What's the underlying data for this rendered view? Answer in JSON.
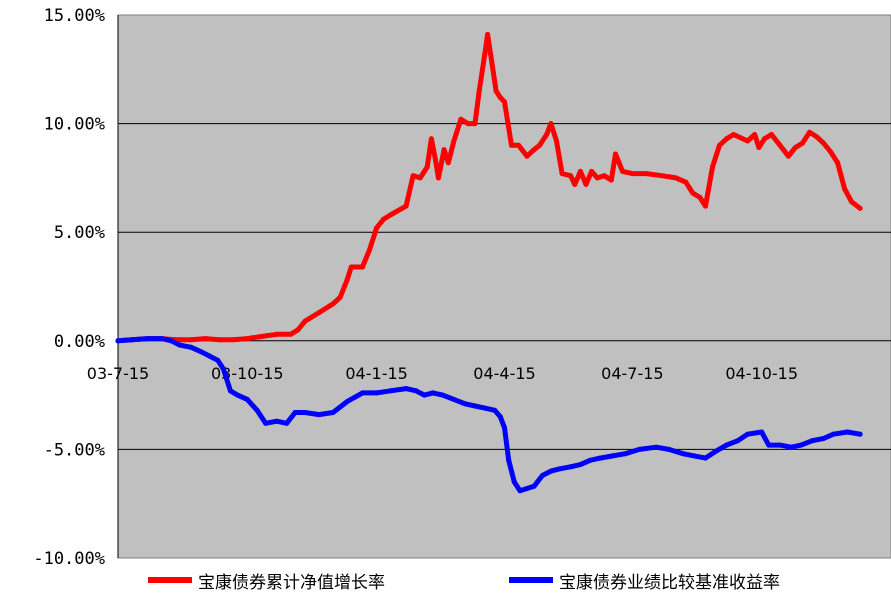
{
  "chart_data": {
    "type": "line",
    "title": "",
    "xlabel": "",
    "ylabel": "",
    "ylim": [
      -10,
      15
    ],
    "y_ticks": [
      {
        "value": 15,
        "label": "15.00%"
      },
      {
        "value": 10,
        "label": "10.00%"
      },
      {
        "value": 5,
        "label": "5.00%"
      },
      {
        "value": 0,
        "label": "0.00%"
      },
      {
        "value": -5,
        "label": "-5.00%"
      },
      {
        "value": -10,
        "label": "-10.00%"
      }
    ],
    "x_ticks": [
      "03-7-15",
      "03-10-15",
      "04-1-15",
      "04-4-15",
      "04-7-15",
      "04-10-15"
    ],
    "x_range": [
      "03-7-15",
      "05-1-15"
    ],
    "grid": true,
    "legend_position": "bottom",
    "plot_background": "#C0C0C0",
    "series": [
      {
        "name": "宝康债券累计净值增长率",
        "color": "#FF0000",
        "points": [
          [
            "03-7-15",
            0.0
          ],
          [
            "03-7-25",
            0.05
          ],
          [
            "03-8-5",
            0.1
          ],
          [
            "03-8-15",
            0.1
          ],
          [
            "03-8-25",
            0.05
          ],
          [
            "03-9-5",
            0.05
          ],
          [
            "03-9-15",
            0.1
          ],
          [
            "03-9-25",
            0.05
          ],
          [
            "03-10-5",
            0.05
          ],
          [
            "03-10-15",
            0.1
          ],
          [
            "03-10-25",
            0.2
          ],
          [
            "03-11-5",
            0.3
          ],
          [
            "03-11-15",
            0.3
          ],
          [
            "03-11-20",
            0.5
          ],
          [
            "03-11-25",
            0.9
          ],
          [
            "03-12-5",
            1.3
          ],
          [
            "03-12-15",
            1.7
          ],
          [
            "03-12-20",
            2.0
          ],
          [
            "03-12-25",
            2.8
          ],
          [
            "03-12-28",
            3.4
          ],
          [
            "04-1-5",
            3.4
          ],
          [
            "04-1-10",
            4.2
          ],
          [
            "04-1-15",
            5.2
          ],
          [
            "04-1-20",
            5.6
          ],
          [
            "04-1-25",
            5.8
          ],
          [
            "04-2-5",
            6.2
          ],
          [
            "04-2-10",
            7.6
          ],
          [
            "04-2-15",
            7.5
          ],
          [
            "04-2-20",
            8.0
          ],
          [
            "04-2-23",
            9.3
          ],
          [
            "04-2-26",
            8.3
          ],
          [
            "04-2-28",
            7.5
          ],
          [
            "04-3-3",
            8.8
          ],
          [
            "04-3-6",
            8.2
          ],
          [
            "04-3-10",
            9.2
          ],
          [
            "04-3-15",
            10.2
          ],
          [
            "04-3-20",
            10.0
          ],
          [
            "04-3-25",
            10.0
          ],
          [
            "04-3-28",
            11.5
          ],
          [
            "04-4-1",
            13.2
          ],
          [
            "04-4-3",
            14.1
          ],
          [
            "04-4-6",
            12.8
          ],
          [
            "04-4-9",
            11.5
          ],
          [
            "04-4-12",
            11.2
          ],
          [
            "04-4-15",
            11.0
          ],
          [
            "04-4-20",
            9.0
          ],
          [
            "04-4-25",
            9.0
          ],
          [
            "04-5-1",
            8.5
          ],
          [
            "04-5-6",
            8.8
          ],
          [
            "04-5-10",
            9.0
          ],
          [
            "04-5-15",
            9.5
          ],
          [
            "04-5-18",
            10.0
          ],
          [
            "04-5-22",
            9.2
          ],
          [
            "04-5-26",
            7.7
          ],
          [
            "04-6-1",
            7.6
          ],
          [
            "04-6-4",
            7.2
          ],
          [
            "04-6-8",
            7.8
          ],
          [
            "04-6-12",
            7.2
          ],
          [
            "04-6-16",
            7.8
          ],
          [
            "04-6-20",
            7.5
          ],
          [
            "04-6-25",
            7.6
          ],
          [
            "04-6-30",
            7.4
          ],
          [
            "04-7-3",
            8.6
          ],
          [
            "04-7-8",
            7.8
          ],
          [
            "04-7-15",
            7.7
          ],
          [
            "04-7-25",
            7.7
          ],
          [
            "04-8-5",
            7.6
          ],
          [
            "04-8-15",
            7.5
          ],
          [
            "04-8-22",
            7.3
          ],
          [
            "04-8-27",
            6.8
          ],
          [
            "04-9-1",
            6.6
          ],
          [
            "04-9-5",
            6.2
          ],
          [
            "04-9-10",
            8.0
          ],
          [
            "04-9-15",
            9.0
          ],
          [
            "04-9-20",
            9.3
          ],
          [
            "04-9-25",
            9.5
          ],
          [
            "04-10-5",
            9.2
          ],
          [
            "04-10-10",
            9.5
          ],
          [
            "04-10-13",
            8.9
          ],
          [
            "04-10-17",
            9.3
          ],
          [
            "04-10-22",
            9.5
          ],
          [
            "04-10-28",
            9.0
          ],
          [
            "04-11-3",
            8.5
          ],
          [
            "04-11-8",
            8.9
          ],
          [
            "04-11-13",
            9.1
          ],
          [
            "04-11-18",
            9.6
          ],
          [
            "04-11-23",
            9.4
          ],
          [
            "04-11-28",
            9.1
          ],
          [
            "04-12-3",
            8.7
          ],
          [
            "04-12-8",
            8.2
          ],
          [
            "04-12-13",
            7.0
          ],
          [
            "04-12-18",
            6.4
          ],
          [
            "04-12-24",
            6.1
          ]
        ]
      },
      {
        "name": "宝康债券业绩比较基准收益率",
        "color": "#0000FF",
        "points": [
          [
            "03-7-15",
            0.0
          ],
          [
            "03-7-25",
            0.05
          ],
          [
            "03-8-5",
            0.1
          ],
          [
            "03-8-15",
            0.1
          ],
          [
            "03-8-22",
            0.0
          ],
          [
            "03-8-28",
            -0.2
          ],
          [
            "03-9-5",
            -0.3
          ],
          [
            "03-9-12",
            -0.5
          ],
          [
            "03-9-18",
            -0.7
          ],
          [
            "03-9-24",
            -0.9
          ],
          [
            "03-9-28",
            -1.3
          ],
          [
            "03-10-3",
            -2.3
          ],
          [
            "03-10-8",
            -2.5
          ],
          [
            "03-10-15",
            -2.7
          ],
          [
            "03-10-22",
            -3.2
          ],
          [
            "03-10-28",
            -3.8
          ],
          [
            "03-11-5",
            -3.7
          ],
          [
            "03-11-12",
            -3.8
          ],
          [
            "03-11-18",
            -3.3
          ],
          [
            "03-11-25",
            -3.3
          ],
          [
            "03-12-5",
            -3.4
          ],
          [
            "03-12-15",
            -3.3
          ],
          [
            "03-12-25",
            -2.8
          ],
          [
            "04-1-5",
            -2.4
          ],
          [
            "04-1-15",
            -2.4
          ],
          [
            "04-1-25",
            -2.3
          ],
          [
            "04-2-5",
            -2.2
          ],
          [
            "04-2-12",
            -2.3
          ],
          [
            "04-2-18",
            -2.5
          ],
          [
            "04-2-24",
            -2.4
          ],
          [
            "04-3-2",
            -2.5
          ],
          [
            "04-3-10",
            -2.7
          ],
          [
            "04-3-18",
            -2.9
          ],
          [
            "04-3-25",
            -3.0
          ],
          [
            "04-4-1",
            -3.1
          ],
          [
            "04-4-8",
            -3.2
          ],
          [
            "04-4-12",
            -3.5
          ],
          [
            "04-4-15",
            -4.0
          ],
          [
            "04-4-18",
            -5.5
          ],
          [
            "04-4-22",
            -6.5
          ],
          [
            "04-4-26",
            -6.9
          ],
          [
            "04-5-1",
            -6.8
          ],
          [
            "04-5-6",
            -6.7
          ],
          [
            "04-5-12",
            -6.2
          ],
          [
            "04-5-18",
            -6.0
          ],
          [
            "04-5-24",
            -5.9
          ],
          [
            "04-6-1",
            -5.8
          ],
          [
            "04-6-8",
            -5.7
          ],
          [
            "04-6-15",
            -5.5
          ],
          [
            "04-6-22",
            -5.4
          ],
          [
            "04-7-1",
            -5.3
          ],
          [
            "04-7-10",
            -5.2
          ],
          [
            "04-7-20",
            -5.0
          ],
          [
            "04-8-1",
            -4.9
          ],
          [
            "04-8-10",
            -5.0
          ],
          [
            "04-8-20",
            -5.2
          ],
          [
            "04-8-28",
            -5.3
          ],
          [
            "04-9-5",
            -5.4
          ],
          [
            "04-9-12",
            -5.1
          ],
          [
            "04-9-20",
            -4.8
          ],
          [
            "04-9-28",
            -4.6
          ],
          [
            "04-10-5",
            -4.3
          ],
          [
            "04-10-15",
            -4.2
          ],
          [
            "04-10-20",
            -4.8
          ],
          [
            "04-10-28",
            -4.8
          ],
          [
            "04-11-5",
            -4.9
          ],
          [
            "04-11-12",
            -4.8
          ],
          [
            "04-11-20",
            -4.6
          ],
          [
            "04-11-28",
            -4.5
          ],
          [
            "04-12-5",
            -4.3
          ],
          [
            "04-12-15",
            -4.2
          ],
          [
            "04-12-24",
            -4.3
          ]
        ]
      }
    ]
  }
}
